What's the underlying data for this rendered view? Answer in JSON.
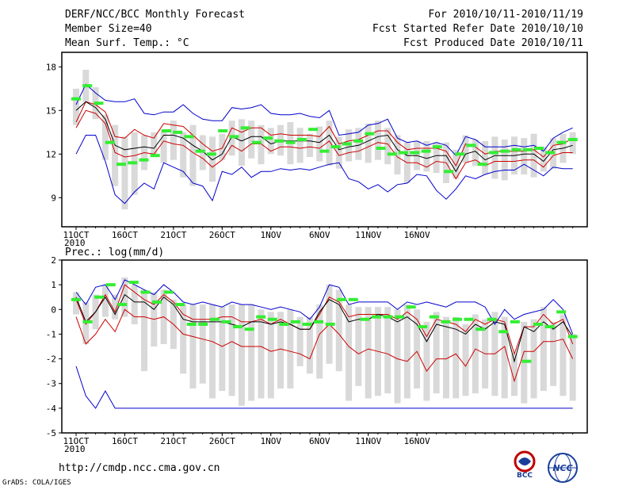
{
  "header": {
    "title": "DERF/NCC/BCC Monthly Forecast",
    "member_size": "Member Size=40",
    "variable": "Mean Surf. Temp.: °C",
    "period": "For 2010/10/11-2010/11/19",
    "started": "Fcst Started Refer Date 2010/10/10",
    "produced": "Fcst Produced Date 2010/10/11"
  },
  "footer": {
    "url": "http://cmdp.ncc.cma.gov.cn",
    "grads": "GrADS: COLA/IGES",
    "logo_bcc": "BCC",
    "logo_ncc": "NCC"
  },
  "colors": {
    "envelope": "#0000cc",
    "percentile": "#cc0000",
    "mean": "#000000",
    "box": "#d9d9d9",
    "member": "#33ee33"
  },
  "chart_data": [
    {
      "type": "box",
      "title": "Mean Surf. Temp.: °C",
      "x_start_label": "2010",
      "categories": [
        "11OCT",
        "16OCT",
        "21OCT",
        "26OCT",
        "1NOV",
        "6NOV",
        "11NOV",
        "16NOV"
      ],
      "ylim": [
        7,
        19
      ],
      "yticks": [
        9,
        12,
        15,
        18
      ],
      "max": [
        12.0,
        13.3,
        13.3,
        11.5,
        9.2,
        8.6,
        9.4,
        10.0,
        9.6,
        11.4,
        11.1,
        10.8,
        10.0,
        9.8,
        8.8,
        10.8,
        10.6,
        11.1,
        10.4,
        10.8,
        10.8,
        11.0,
        10.9,
        11.0,
        10.9,
        11.1,
        11.3,
        11.4,
        10.3,
        10.1,
        9.6,
        9.9,
        9.4,
        9.9,
        10.0,
        10.6,
        10.5,
        9.5,
        8.9,
        9.6,
        10.5,
        10.3,
        10.6,
        10.8,
        10.9,
        10.9,
        11.3,
        10.9,
        10.5,
        11.1,
        11.0,
        11.0
      ],
      "ymaxline": [
        15.4,
        16.8,
        16.2,
        15.7,
        15.6,
        15.6,
        15.8,
        14.8,
        14.7,
        14.9,
        14.9,
        15.4,
        14.8,
        14.4,
        14.3,
        14.3,
        15.2,
        15.1,
        15.2,
        15.4,
        14.8,
        14.7,
        14.7,
        14.8,
        14.6,
        14.5,
        15.0,
        13.3,
        13.4,
        13.5,
        14.0,
        14.1,
        14.4,
        13.1,
        12.8,
        12.9,
        12.6,
        12.8,
        12.6,
        11.9,
        13.2,
        13.0,
        12.5,
        12.5,
        12.5,
        12.6,
        12.5,
        12.6,
        12.2,
        13.1,
        13.5,
        13.8
      ],
      "p90": [
        14.2,
        15.6,
        15.4,
        14.9,
        13.2,
        13.1,
        13.7,
        13.3,
        13.1,
        14.1,
        14.0,
        13.9,
        13.3,
        12.7,
        12.2,
        12.4,
        13.8,
        13.5,
        13.8,
        13.8,
        13.3,
        13.4,
        13.3,
        13.3,
        13.3,
        13.2,
        13.9,
        12.7,
        12.9,
        13.0,
        13.3,
        13.6,
        13.6,
        12.8,
        12.3,
        12.4,
        12.4,
        12.4,
        12.2,
        11.2,
        12.7,
        12.5,
        12.0,
        12.2,
        12.2,
        12.2,
        12.2,
        12.3,
        11.8,
        12.6,
        12.7,
        13.1
      ],
      "mean": [
        15.0,
        15.6,
        15.2,
        14.4,
        12.6,
        12.3,
        12.4,
        12.5,
        12.4,
        13.3,
        13.3,
        13.1,
        12.6,
        12.2,
        11.6,
        12.0,
        13.2,
        12.9,
        13.2,
        13.2,
        12.7,
        12.9,
        12.9,
        12.9,
        12.9,
        12.8,
        13.3,
        12.3,
        12.5,
        12.6,
        12.9,
        13.2,
        13.3,
        12.3,
        11.9,
        11.9,
        11.7,
        11.9,
        11.9,
        10.8,
        12.0,
        12.2,
        11.6,
        11.9,
        11.9,
        11.9,
        12.0,
        12.0,
        11.5,
        12.3,
        12.4,
        12.6
      ],
      "p10": [
        13.8,
        15.0,
        14.8,
        14.1,
        12.1,
        11.8,
        11.9,
        12.1,
        12.0,
        12.9,
        12.7,
        12.6,
        12.1,
        11.7,
        11.1,
        11.6,
        12.6,
        12.2,
        12.7,
        12.7,
        12.2,
        12.5,
        12.5,
        12.4,
        12.5,
        12.4,
        12.9,
        11.9,
        12.1,
        12.2,
        12.5,
        12.8,
        12.7,
        11.8,
        11.4,
        11.4,
        11.1,
        11.5,
        11.4,
        10.3,
        11.4,
        11.6,
        11.2,
        11.5,
        11.5,
        11.5,
        11.6,
        11.6,
        11.1,
        11.9,
        12.1,
        12.1
      ],
      "min": [
        12.0,
        13.3,
        13.3,
        11.5,
        9.2,
        8.6,
        9.4,
        10.0,
        9.6,
        11.4,
        11.1,
        10.8,
        10.0,
        9.8,
        8.8,
        10.8,
        10.6,
        11.1,
        10.4,
        10.8,
        10.8,
        11.0,
        10.9,
        11.0,
        10.9,
        11.1,
        11.3,
        11.4,
        10.3,
        10.1,
        9.6,
        9.9,
        9.4,
        9.9,
        10.0,
        10.6,
        10.5,
        9.5,
        8.9,
        9.6,
        10.5,
        10.3,
        10.6,
        10.8,
        10.9,
        10.9,
        11.3,
        10.9,
        10.5,
        11.1,
        11.0,
        11.0
      ],
      "box_top": [
        16.5,
        17.8,
        16.6,
        14.7,
        14.0,
        13.2,
        13.5,
        13.3,
        13.5,
        13.7,
        14.3,
        13.5,
        14.0,
        13.3,
        13.2,
        13.4,
        14.3,
        14.4,
        14.3,
        14.0,
        13.8,
        14.0,
        14.2,
        13.8,
        13.4,
        13.9,
        14.3,
        13.2,
        13.7,
        13.8,
        14.1,
        14.3,
        13.8,
        13.3,
        12.8,
        12.9,
        12.9,
        12.8,
        12.8,
        12.3,
        13.3,
        13.0,
        12.9,
        13.2,
        13.0,
        13.2,
        13.1,
        13.4,
        12.5,
        13.1,
        13.4,
        13.5
      ],
      "box_bottom": [
        14.0,
        15.6,
        14.4,
        11.6,
        9.8,
        8.2,
        9.2,
        10.9,
        11.8,
        11.4,
        11.6,
        10.4,
        9.8,
        10.9,
        10.1,
        11.6,
        11.9,
        11.2,
        11.7,
        11.3,
        12.0,
        11.9,
        11.3,
        11.4,
        11.8,
        11.5,
        11.2,
        11.0,
        11.5,
        11.6,
        11.4,
        11.6,
        11.3,
        10.6,
        10.0,
        10.9,
        10.8,
        10.7,
        10.0,
        10.3,
        11.4,
        11.2,
        10.6,
        10.3,
        10.2,
        10.6,
        10.6,
        10.4,
        10.8,
        11.0,
        11.4,
        12.0
      ],
      "member": [
        15.8,
        16.7,
        15.5,
        12.8,
        11.3,
        11.4,
        11.6,
        11.9,
        13.6,
        13.5,
        13.2,
        12.2,
        12.0,
        13.6,
        13.2,
        13.8,
        12.8,
        13.1,
        12.9,
        12.8,
        13.0,
        13.7,
        12.2,
        12.5,
        12.7,
        12.9,
        13.4,
        12.4,
        12.0,
        12.1,
        12.1,
        12.2,
        12.5,
        10.8,
        12.0,
        12.6,
        11.3,
        12.1,
        12.2,
        12.3,
        12.3,
        12.4,
        12.1,
        12.8,
        13.0
      ]
    },
    {
      "type": "box",
      "title": "Prec.: log(mm/d)",
      "x_start_label": "2010",
      "categories": [
        "11OCT",
        "16OCT",
        "21OCT",
        "26OCT",
        "1NOV",
        "6NOV",
        "11NOV",
        "16NOV"
      ],
      "ylim": [
        -5,
        2
      ],
      "yticks": [
        -5,
        -4,
        -3,
        -2,
        -1,
        0,
        1,
        2
      ],
      "max": [
        -2.3,
        -3.5,
        -4.0,
        -3.3,
        -4.0,
        -4.0,
        -4.0,
        -4.0,
        -4.0,
        -4.0,
        -4.0,
        -4.0,
        -4.0,
        -4.0,
        -4.0,
        -4.0,
        -4.0,
        -4.0,
        -4.0,
        -4.0,
        -4.0,
        -4.0,
        -4.0,
        -4.0,
        -4.0,
        -4.0,
        -4.0,
        -4.0,
        -4.0,
        -4.0,
        -4.0,
        -4.0,
        -4.0,
        -4.0,
        -4.0,
        -4.0,
        -4.0,
        -4.0,
        -4.0,
        -4.0,
        -4.0,
        -4.0,
        -4.0,
        -4.0,
        -4.0,
        -4.0,
        -4.0,
        -4.0,
        -4.0,
        -4.0,
        -4.0,
        -4.0
      ],
      "ymaxline": [
        0.7,
        0.2,
        0.9,
        1.0,
        0.4,
        1.2,
        1.0,
        0.8,
        0.6,
        1.0,
        0.7,
        0.3,
        0.2,
        0.3,
        0.2,
        0.1,
        0.3,
        0.2,
        0.2,
        0.1,
        0.0,
        0.1,
        0.0,
        -0.1,
        -0.4,
        0.1,
        1.0,
        0.9,
        0.2,
        0.3,
        0.3,
        0.3,
        0.3,
        0.0,
        0.3,
        0.2,
        0.3,
        0.2,
        0.1,
        0.3,
        0.3,
        0.3,
        0.1,
        -0.6,
        0.0,
        -0.4,
        -0.2,
        -0.1,
        0.0,
        0.4,
        0.0,
        -1.0
      ],
      "p90": [
        0.4,
        -0.6,
        -0.1,
        0.6,
        -0.1,
        1.0,
        0.7,
        0.4,
        0.2,
        0.6,
        0.3,
        -0.2,
        -0.4,
        -0.4,
        -0.4,
        -0.3,
        -0.3,
        -0.5,
        -0.5,
        -0.4,
        -0.6,
        -0.4,
        -0.6,
        -0.8,
        -0.8,
        -0.2,
        0.5,
        0.3,
        -0.3,
        -0.2,
        -0.2,
        -0.2,
        -0.2,
        -0.4,
        -0.1,
        -0.4,
        -1.1,
        -0.4,
        -0.5,
        -0.6,
        -0.9,
        -0.4,
        -0.6,
        -0.4,
        -0.5,
        -1.8,
        -0.7,
        -0.7,
        -0.2,
        -0.6,
        -0.4,
        -1.4
      ],
      "mean": [
        0.5,
        -0.5,
        -0.1,
        0.5,
        -0.2,
        0.6,
        0.3,
        0.3,
        0.0,
        0.5,
        0.2,
        -0.4,
        -0.5,
        -0.5,
        -0.5,
        -0.5,
        -0.6,
        -0.7,
        -0.5,
        -0.5,
        -0.6,
        -0.5,
        -0.6,
        -0.8,
        -0.8,
        -0.1,
        0.4,
        0.2,
        -0.5,
        -0.4,
        -0.4,
        -0.2,
        -0.3,
        -0.5,
        -0.3,
        -0.6,
        -1.3,
        -0.6,
        -0.7,
        -0.8,
        -1.0,
        -0.6,
        -0.8,
        -0.5,
        -0.6,
        -2.1,
        -0.7,
        -0.9,
        -0.5,
        -0.8,
        -0.5,
        -1.1
      ],
      "p10": [
        -0.3,
        -1.4,
        -1.0,
        -0.4,
        -0.9,
        0.0,
        -0.3,
        -0.3,
        -0.4,
        -0.3,
        -0.6,
        -1.0,
        -1.1,
        -1.2,
        -1.3,
        -1.5,
        -1.3,
        -1.5,
        -1.5,
        -1.5,
        -1.7,
        -1.6,
        -1.7,
        -1.8,
        -2.0,
        -1.0,
        -0.6,
        -1.0,
        -1.5,
        -1.8,
        -1.6,
        -1.7,
        -1.8,
        -2.0,
        -2.1,
        -1.7,
        -2.5,
        -2.0,
        -2.0,
        -1.8,
        -2.3,
        -1.6,
        -1.8,
        -1.8,
        -1.5,
        -2.9,
        -1.7,
        -1.7,
        -1.3,
        -1.3,
        -1.2,
        -2.0
      ],
      "min": [
        -2.3,
        -3.5,
        -4.0,
        -3.3,
        -4.0,
        -4.0,
        -4.0,
        -4.0,
        -4.0,
        -4.0,
        -4.0,
        -4.0,
        -4.0,
        -4.0,
        -4.0,
        -4.0,
        -4.0,
        -4.0,
        -4.0,
        -4.0,
        -4.0,
        -4.0,
        -4.0,
        -4.0,
        -4.0,
        -4.0,
        -4.0,
        -4.0,
        -4.0,
        -4.0,
        -4.0,
        -4.0,
        -4.0,
        -4.0,
        -4.0,
        -4.0,
        -4.0,
        -4.0,
        -4.0,
        -4.0,
        -4.0,
        -4.0,
        -4.0,
        -4.0,
        -4.0,
        -4.0,
        -4.0,
        -4.0,
        -4.0,
        -4.0,
        -4.0,
        -4.0
      ],
      "box_top": [
        0.7,
        0.3,
        0.6,
        1.0,
        0.6,
        1.3,
        1.0,
        0.8,
        0.7,
        0.8,
        0.4,
        0.2,
        0.2,
        0.2,
        0.2,
        0.1,
        0.2,
        0.2,
        0.2,
        0.0,
        -0.1,
        -0.1,
        0.0,
        -0.3,
        -0.3,
        0.2,
        1.0,
        0.8,
        0.2,
        0.1,
        0.1,
        0.1,
        0.1,
        0.0,
        0.2,
        0.0,
        -0.5,
        -0.1,
        -0.3,
        -0.3,
        -0.6,
        -0.2,
        -0.4,
        -0.1,
        -0.3,
        -1.8,
        -0.5,
        -0.4,
        0.1,
        -0.5,
        -0.2,
        -1.0
      ],
      "box_bottom": [
        -0.2,
        -1.4,
        -0.8,
        -0.3,
        -0.4,
        -0.3,
        -0.6,
        -2.5,
        -1.5,
        -1.4,
        -1.6,
        -2.6,
        -3.2,
        -3.0,
        -3.6,
        -3.3,
        -3.5,
        -3.9,
        -3.7,
        -3.6,
        -3.6,
        -3.2,
        -3.2,
        -2.3,
        -2.6,
        -2.8,
        -2.2,
        -2.5,
        -3.7,
        -3.1,
        -3.6,
        -3.5,
        -3.4,
        -3.8,
        -3.6,
        -3.2,
        -3.7,
        -3.4,
        -3.6,
        -3.6,
        -3.5,
        -3.4,
        -3.2,
        -3.5,
        -3.6,
        -3.5,
        -3.8,
        -3.6,
        -3.3,
        -3.1,
        -3.5,
        -3.7
      ],
      "member": [
        0.4,
        -0.5,
        0.5,
        1.0,
        0.2,
        1.1,
        0.7,
        0.3,
        0.7,
        0.2,
        -0.6,
        -0.6,
        -0.4,
        -0.5,
        -0.7,
        -0.8,
        -0.3,
        -0.4,
        -0.6,
        -0.5,
        -0.6,
        -0.5,
        -0.6,
        0.4,
        0.4,
        -0.4,
        -0.3,
        -0.3,
        -0.3,
        0.1,
        -0.7,
        -0.3,
        -0.5,
        -0.4,
        -0.4,
        -0.8,
        -0.4,
        -0.9,
        -0.5,
        -2.1,
        -0.6,
        -0.7,
        -0.1,
        -1.1
      ]
    }
  ]
}
